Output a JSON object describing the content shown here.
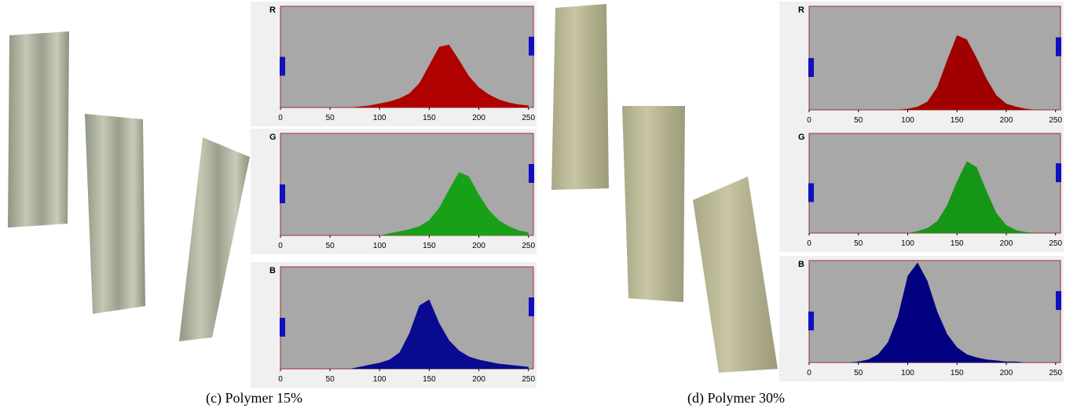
{
  "chart_data": [
    {
      "type": "area",
      "title": "R",
      "color": "#b00000",
      "xlim": [
        0,
        255
      ],
      "ylim": [
        0,
        100
      ],
      "xticks": [
        0,
        50,
        100,
        150,
        200,
        250
      ],
      "x": [
        0,
        10,
        20,
        30,
        40,
        50,
        60,
        70,
        80,
        90,
        100,
        110,
        120,
        130,
        140,
        150,
        160,
        170,
        180,
        190,
        200,
        210,
        220,
        230,
        240,
        250
      ],
      "values": [
        0,
        0,
        0,
        0,
        0,
        0,
        0,
        0,
        1,
        2,
        4,
        6,
        9,
        14,
        24,
        42,
        60,
        62,
        47,
        31,
        20,
        13,
        8,
        5,
        3,
        2
      ]
    },
    {
      "type": "area",
      "title": "G",
      "color": "#18a018",
      "xlim": [
        0,
        255
      ],
      "ylim": [
        0,
        100
      ],
      "xticks": [
        0,
        50,
        100,
        150,
        200,
        250
      ],
      "x": [
        0,
        10,
        20,
        30,
        40,
        50,
        60,
        70,
        80,
        90,
        100,
        110,
        120,
        130,
        140,
        150,
        160,
        170,
        180,
        190,
        200,
        210,
        220,
        230,
        240,
        250
      ],
      "values": [
        0,
        0,
        0,
        0,
        0,
        0,
        0,
        0,
        0,
        0,
        0,
        2,
        4,
        6,
        9,
        15,
        27,
        45,
        62,
        58,
        40,
        25,
        15,
        9,
        5,
        3
      ]
    },
    {
      "type": "area",
      "title": "B",
      "color": "#0a0a90",
      "xlim": [
        0,
        255
      ],
      "ylim": [
        0,
        100
      ],
      "xticks": [
        0,
        50,
        100,
        150,
        200,
        250
      ],
      "x": [
        0,
        10,
        20,
        30,
        40,
        50,
        60,
        70,
        80,
        90,
        100,
        110,
        120,
        130,
        140,
        150,
        160,
        170,
        180,
        190,
        200,
        210,
        220,
        230,
        240,
        250
      ],
      "values": [
        0,
        0,
        0,
        0,
        0,
        0,
        0,
        0,
        2,
        4,
        6,
        9,
        16,
        35,
        62,
        68,
        45,
        28,
        18,
        12,
        9,
        7,
        5,
        4,
        3,
        2
      ]
    },
    {
      "type": "area",
      "title": "R",
      "color": "#a00000",
      "xlim": [
        0,
        255
      ],
      "ylim": [
        0,
        100
      ],
      "xticks": [
        0,
        50,
        100,
        150,
        200,
        250
      ],
      "x": [
        0,
        10,
        20,
        30,
        40,
        50,
        60,
        70,
        80,
        90,
        100,
        110,
        120,
        130,
        140,
        150,
        160,
        170,
        180,
        190,
        200,
        210,
        220,
        230,
        240,
        250
      ],
      "values": [
        0,
        0,
        0,
        0,
        0,
        0,
        0,
        0,
        0,
        0,
        1,
        3,
        8,
        22,
        48,
        72,
        68,
        50,
        30,
        14,
        6,
        3,
        1,
        0,
        0,
        0
      ]
    },
    {
      "type": "area",
      "title": "G",
      "color": "#169616",
      "xlim": [
        0,
        255
      ],
      "ylim": [
        0,
        100
      ],
      "xticks": [
        0,
        50,
        100,
        150,
        200,
        250
      ],
      "x": [
        0,
        10,
        20,
        30,
        40,
        50,
        60,
        70,
        80,
        90,
        100,
        110,
        120,
        130,
        140,
        150,
        160,
        170,
        180,
        190,
        200,
        210,
        220,
        230,
        240,
        250
      ],
      "values": [
        0,
        0,
        0,
        0,
        0,
        0,
        0,
        0,
        0,
        0,
        0,
        2,
        5,
        12,
        28,
        52,
        72,
        66,
        42,
        20,
        8,
        3,
        1,
        0,
        0,
        0
      ]
    },
    {
      "type": "area",
      "title": "B",
      "color": "#000080",
      "xlim": [
        0,
        255
      ],
      "ylim": [
        0,
        100
      ],
      "xticks": [
        0,
        50,
        100,
        150,
        200,
        250
      ],
      "x": [
        0,
        10,
        20,
        30,
        40,
        50,
        60,
        70,
        80,
        90,
        100,
        110,
        120,
        130,
        140,
        150,
        160,
        170,
        180,
        190,
        200,
        210,
        220,
        230,
        240,
        250
      ],
      "values": [
        0,
        0,
        0,
        0,
        0,
        1,
        3,
        8,
        20,
        45,
        85,
        98,
        80,
        50,
        28,
        15,
        8,
        5,
        3,
        2,
        1,
        1,
        0,
        0,
        0,
        0
      ]
    }
  ],
  "captions": [
    "(c) Polymer 15%",
    "(d) Polymer 30%"
  ]
}
